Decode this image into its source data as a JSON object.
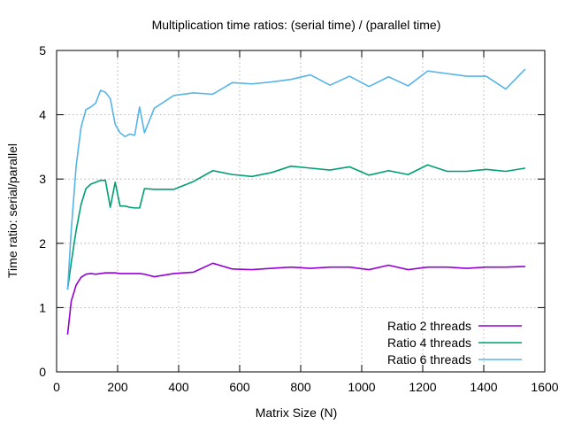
{
  "chart_data": {
    "type": "line",
    "title": "Multiplication time ratios: (serial time) / (parallel time)",
    "xlabel": "Matrix Size (N)",
    "ylabel": "Time ratio: serial/parallel",
    "xlim": [
      0,
      1600
    ],
    "ylim": [
      0,
      5
    ],
    "xticks": [
      0,
      200,
      400,
      600,
      800,
      1000,
      1200,
      1400,
      1600
    ],
    "yticks": [
      0,
      1,
      2,
      3,
      4,
      5
    ],
    "grid": true,
    "legend_position": "bottom-right",
    "series": [
      {
        "name": "Ratio 2 threads",
        "color": "#9400d3",
        "x": [
          36,
          48,
          64,
          80,
          96,
          112,
          128,
          144,
          160,
          176,
          192,
          208,
          224,
          240,
          256,
          272,
          288,
          320,
          384,
          448,
          512,
          576,
          640,
          704,
          768,
          832,
          896,
          960,
          1024,
          1088,
          1152,
          1216,
          1280,
          1344,
          1408,
          1472,
          1536
        ],
        "y": [
          0.58,
          1.1,
          1.35,
          1.47,
          1.52,
          1.53,
          1.52,
          1.53,
          1.54,
          1.54,
          1.54,
          1.53,
          1.53,
          1.53,
          1.53,
          1.53,
          1.52,
          1.48,
          1.53,
          1.55,
          1.69,
          1.6,
          1.59,
          1.61,
          1.63,
          1.61,
          1.63,
          1.63,
          1.59,
          1.66,
          1.59,
          1.63,
          1.63,
          1.61,
          1.63,
          1.63,
          1.64
        ]
      },
      {
        "name": "Ratio 4 threads",
        "color": "#009e73",
        "x": [
          36,
          48,
          64,
          80,
          96,
          112,
          128,
          144,
          160,
          176,
          192,
          208,
          224,
          240,
          256,
          272,
          288,
          320,
          384,
          448,
          512,
          576,
          640,
          704,
          768,
          832,
          896,
          960,
          1024,
          1088,
          1152,
          1216,
          1280,
          1344,
          1408,
          1472,
          1536
        ],
        "y": [
          1.28,
          1.7,
          2.2,
          2.6,
          2.85,
          2.92,
          2.95,
          2.98,
          2.98,
          2.56,
          2.95,
          2.58,
          2.58,
          2.56,
          2.55,
          2.55,
          2.85,
          2.84,
          2.84,
          2.96,
          3.13,
          3.07,
          3.04,
          3.1,
          3.2,
          3.17,
          3.14,
          3.19,
          3.06,
          3.13,
          3.07,
          3.22,
          3.12,
          3.12,
          3.15,
          3.12,
          3.17
        ]
      },
      {
        "name": "Ratio 6 threads",
        "color": "#56b4e9",
        "x": [
          36,
          48,
          64,
          80,
          96,
          112,
          128,
          144,
          160,
          176,
          192,
          208,
          224,
          240,
          256,
          272,
          288,
          320,
          384,
          448,
          512,
          576,
          640,
          704,
          768,
          832,
          896,
          960,
          1024,
          1088,
          1152,
          1216,
          1280,
          1344,
          1408,
          1472,
          1536
        ],
        "y": [
          1.28,
          2.2,
          3.2,
          3.8,
          4.08,
          4.12,
          4.18,
          4.38,
          4.35,
          4.25,
          3.85,
          3.72,
          3.66,
          3.7,
          3.68,
          4.12,
          3.72,
          4.1,
          4.3,
          4.34,
          4.32,
          4.5,
          4.48,
          4.51,
          4.55,
          4.62,
          4.46,
          4.6,
          4.44,
          4.59,
          4.45,
          4.68,
          4.64,
          4.6,
          4.6,
          4.4,
          4.71
        ]
      }
    ]
  }
}
